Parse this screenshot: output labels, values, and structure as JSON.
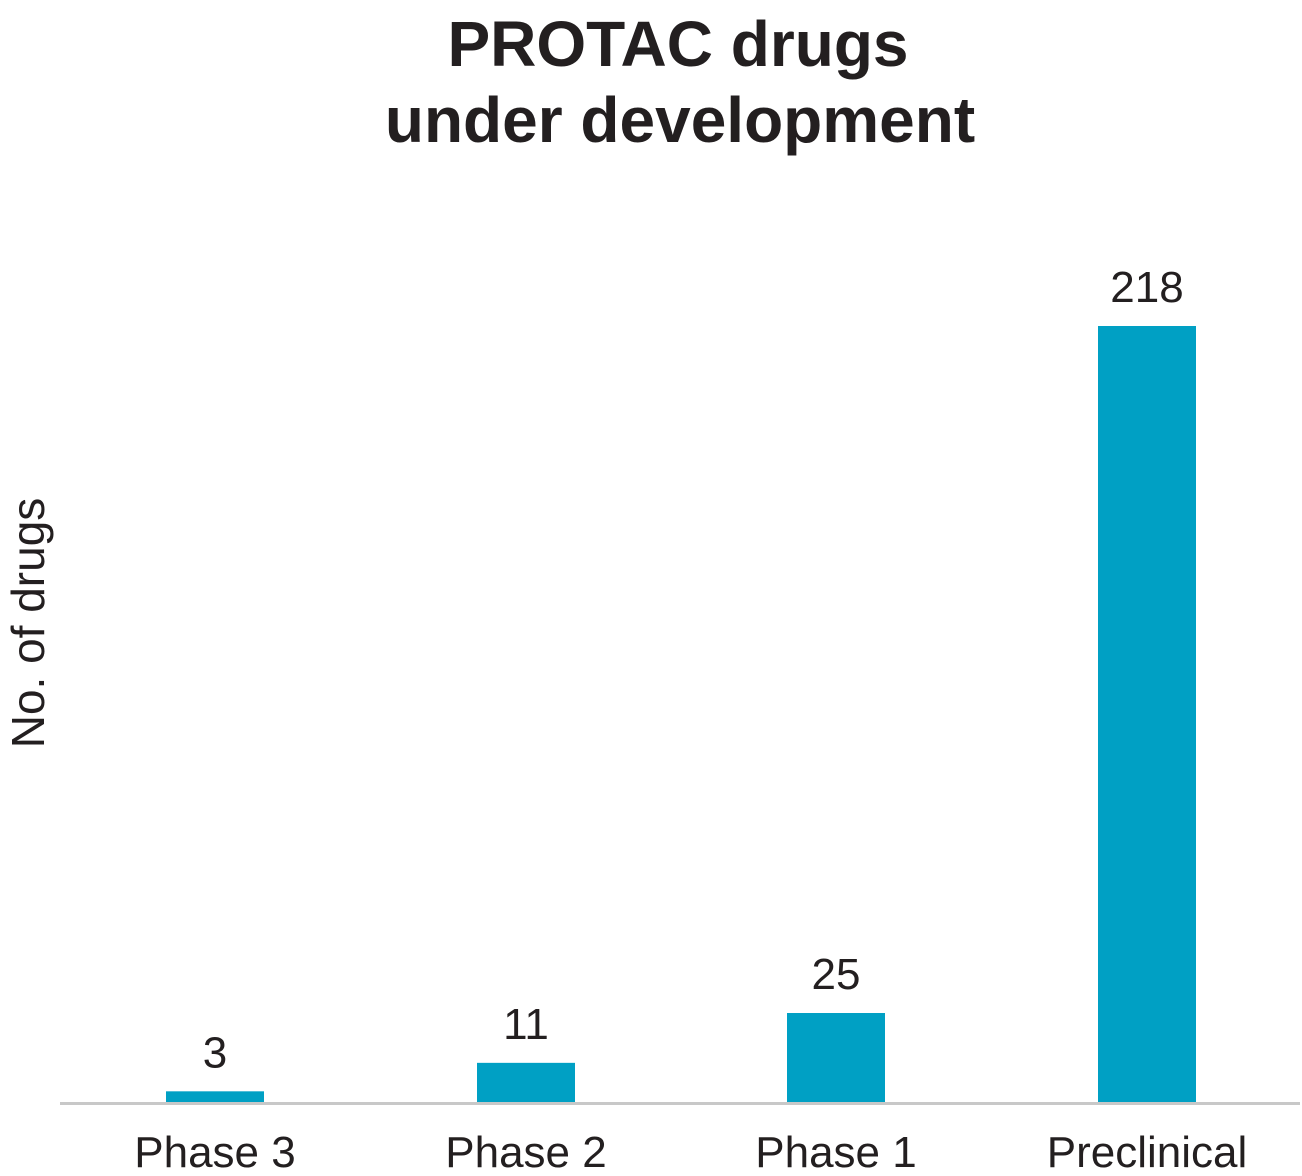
{
  "chart_data": {
    "type": "bar",
    "title_lines": [
      "PROTAC drugs",
      "under development"
    ],
    "xlabel": "",
    "ylabel": "No. of drugs",
    "categories": [
      "Phase 3",
      "Phase 2",
      "Phase 1",
      "Preclinical"
    ],
    "values": [
      3,
      11,
      25,
      218
    ],
    "data_labels": [
      "3",
      "11",
      "25",
      "218"
    ],
    "ylim": [
      0,
      218
    ],
    "grid": false,
    "legend": "none",
    "bar_color": "#00a0c4",
    "axis_color": "#c8c8c8",
    "text_color": "#231f20"
  }
}
